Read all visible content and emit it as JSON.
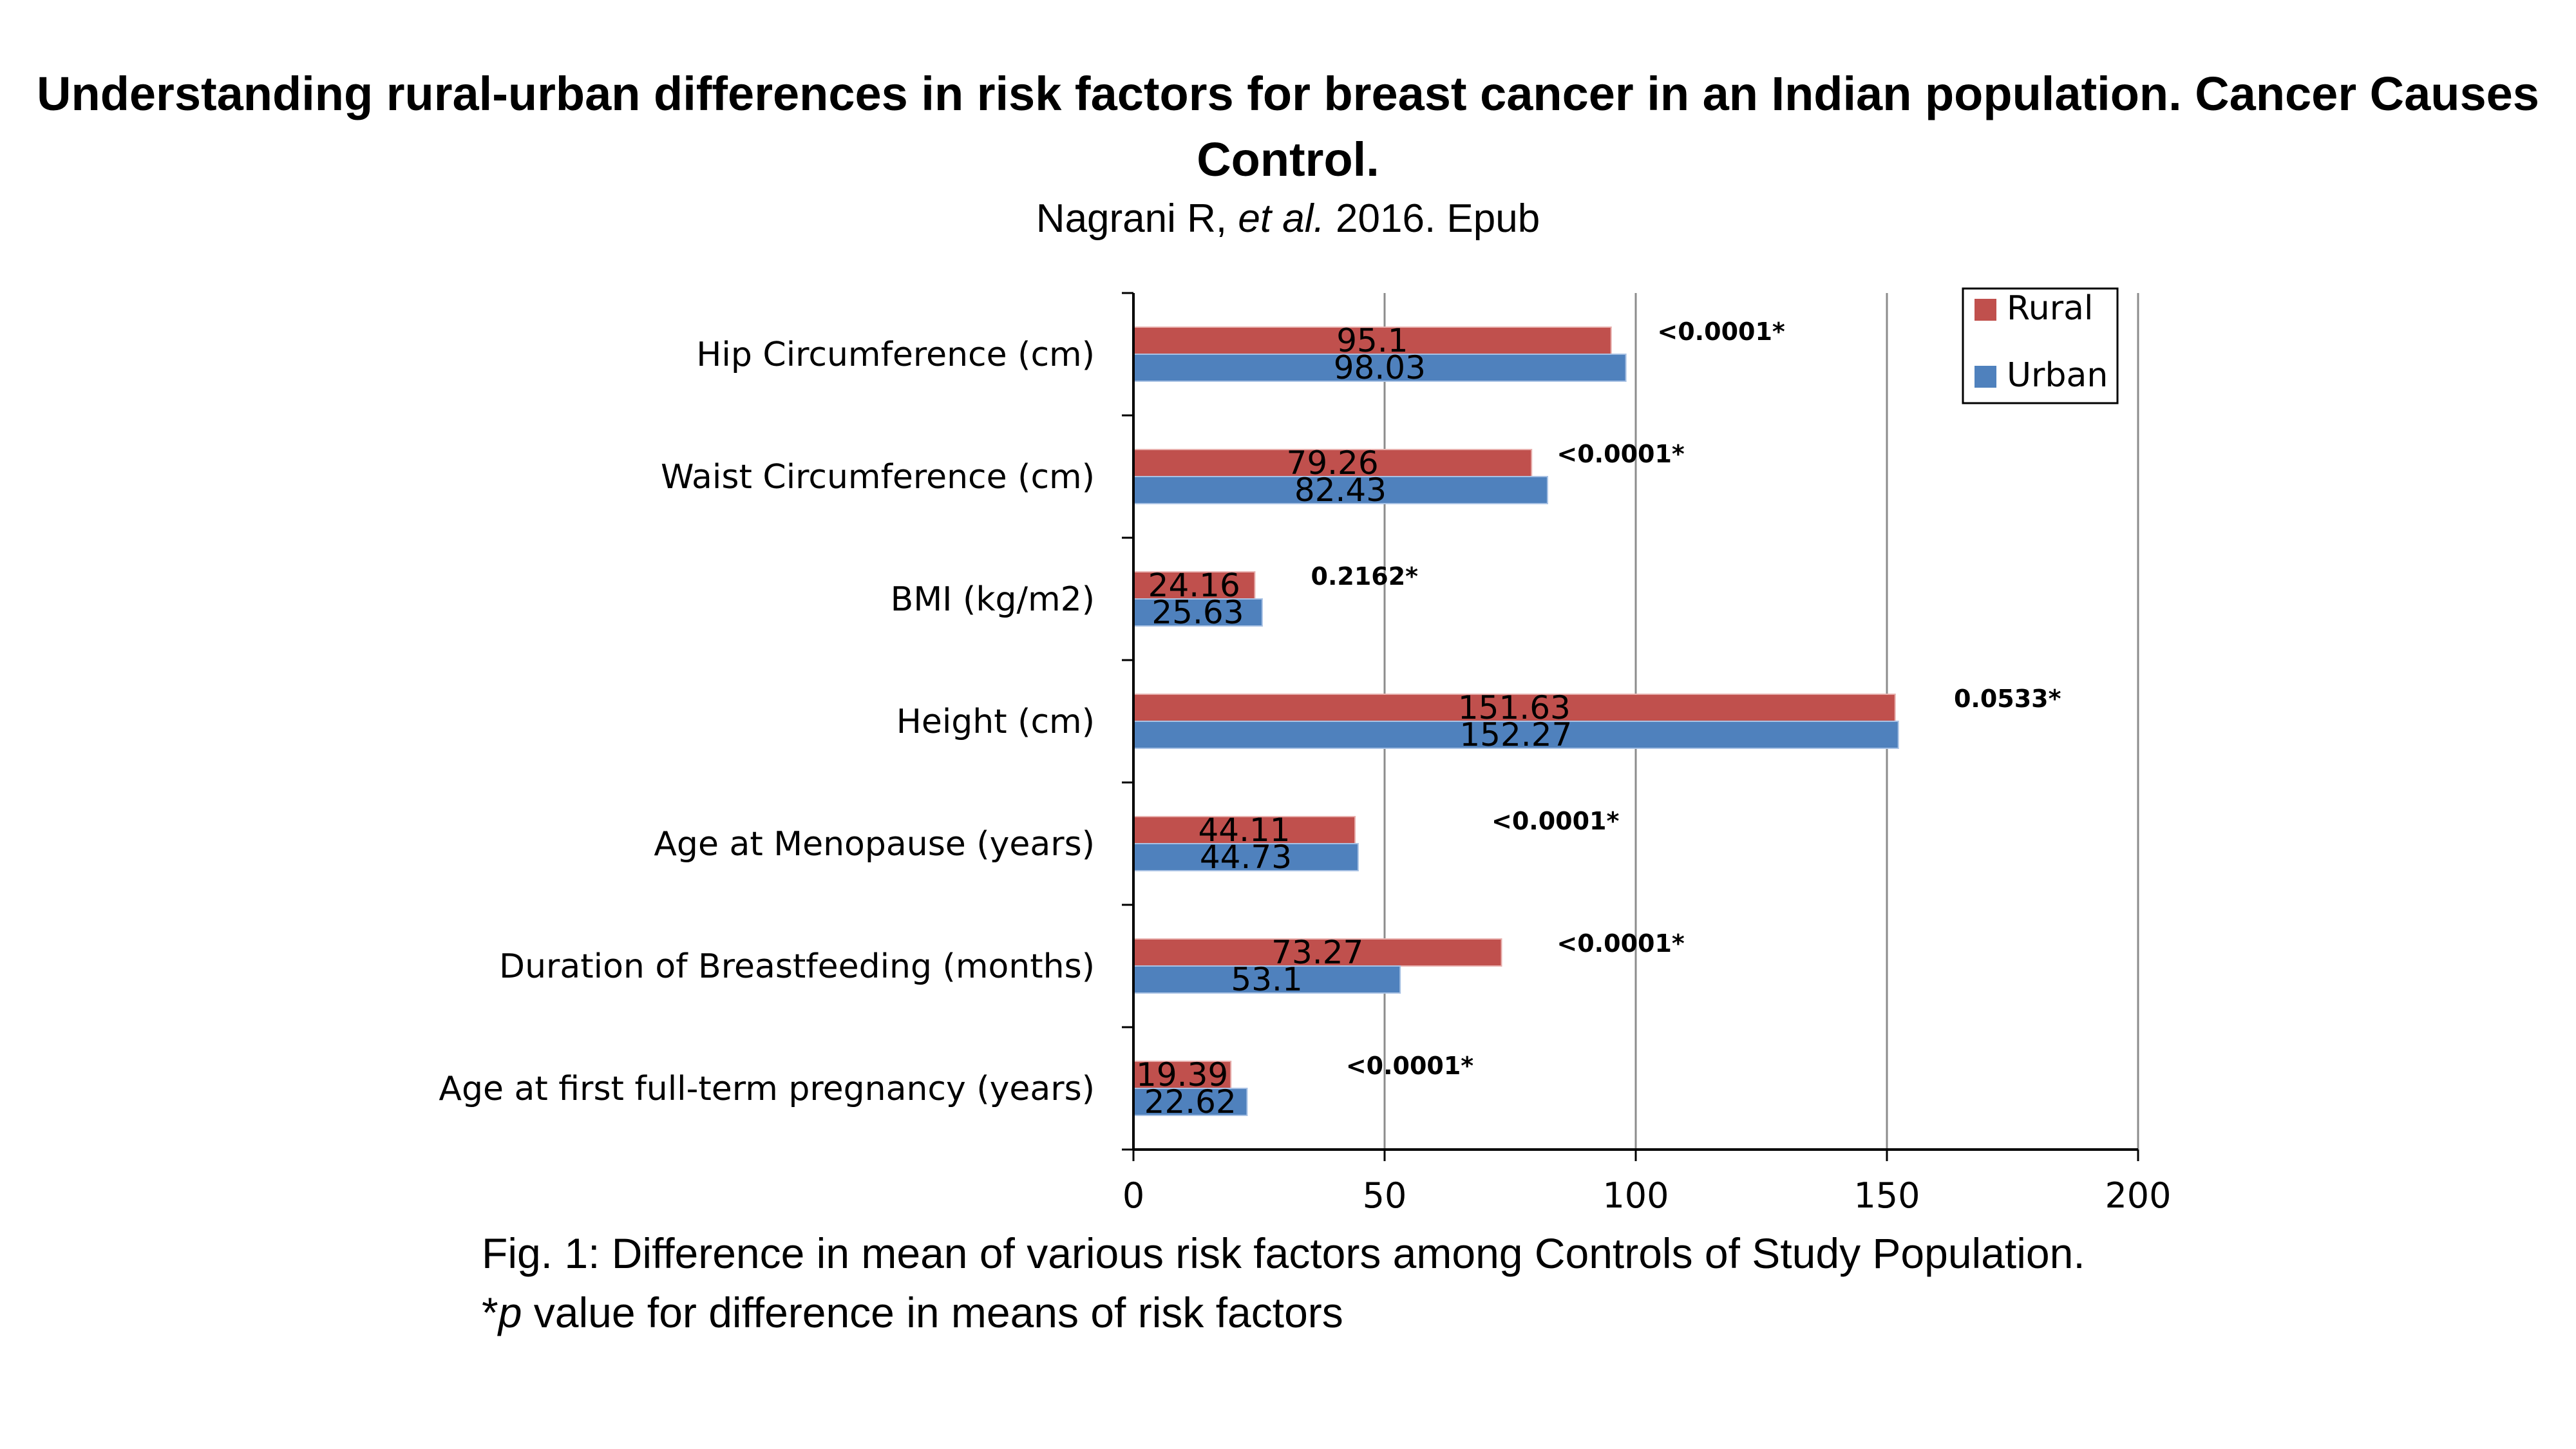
{
  "header": {
    "title": "Understanding rural-urban differences in risk factors for breast cancer in an Indian population. Cancer Causes Control.",
    "citation_pre": "Nagrani R, ",
    "citation_italic": "et al.",
    "citation_post": " 2016. Epub"
  },
  "caption": {
    "line1": "Fig. 1: Difference in mean of various risk factors among Controls of Study Population.",
    "line2_prefix": "*",
    "line2_italic": "p",
    "line2_rest": " value for difference in means of risk factors"
  },
  "chart_data": {
    "type": "bar",
    "orientation": "horizontal",
    "categories": [
      "Hip Circumference (cm)",
      "Waist Circumference (cm)",
      "BMI (kg/m2)",
      "Height (cm)",
      "Age at Menopause (years)",
      "Duration of Breastfeeding (months)",
      "Age at first full-term pregnancy (years)"
    ],
    "series": [
      {
        "name": "Rural",
        "color": "#c0504d",
        "values": [
          95.1,
          79.26,
          24.16,
          151.63,
          44.11,
          73.27,
          19.39
        ],
        "labels": [
          "95.1",
          "79.26",
          "24.16",
          "151.63",
          "44.11",
          "73.27",
          "19.39"
        ]
      },
      {
        "name": "Urban",
        "color": "#4f81bd",
        "values": [
          98.03,
          82.43,
          25.63,
          152.27,
          44.73,
          53.1,
          22.62
        ],
        "labels": [
          "98.03",
          "82.43",
          "25.63",
          "152.27",
          "44.73",
          "53.1",
          "22.62"
        ]
      }
    ],
    "annotations": [
      "<0.0001*",
      "<0.0001*",
      "0.2162*",
      "0.0533*",
      "<0.0001*",
      "<0.0001*",
      "<0.0001*"
    ],
    "annotation_x": [
      117,
      97,
      46,
      174,
      84,
      97,
      55
    ],
    "xlim": [
      0,
      200
    ],
    "xticks": [
      0,
      50,
      100,
      150,
      200
    ],
    "grid": true,
    "legend_position": "top-right"
  }
}
